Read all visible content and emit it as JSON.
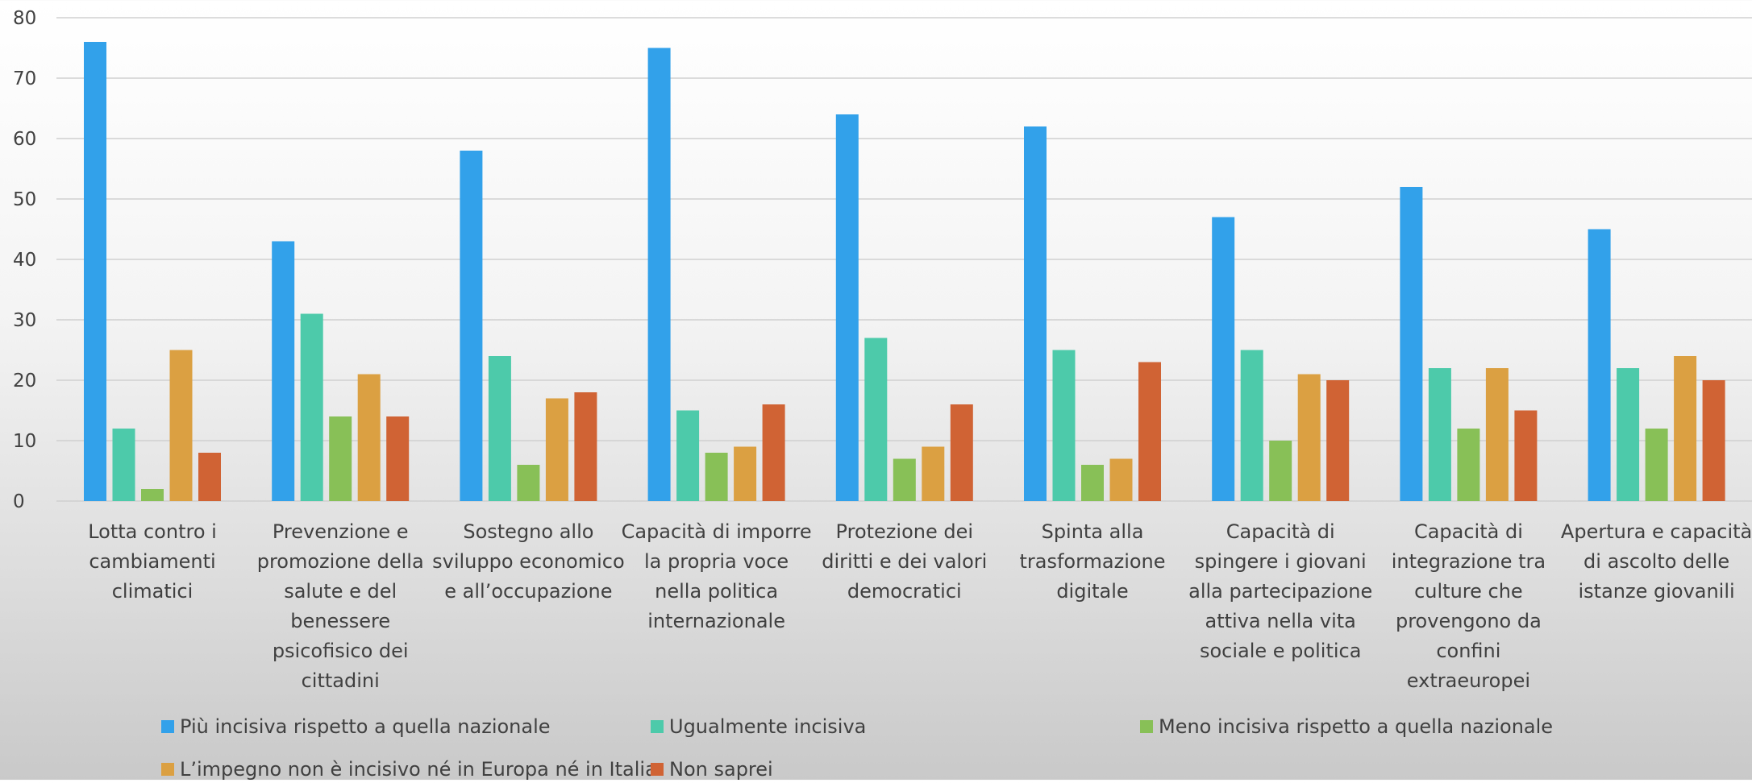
{
  "chart_data": {
    "type": "bar",
    "title": "",
    "xlabel": "",
    "ylabel": "",
    "ylim": [
      0,
      80
    ],
    "yticks": [
      0,
      10,
      20,
      30,
      40,
      50,
      60,
      70,
      80
    ],
    "grid": true,
    "legend_position": "bottom",
    "categories": [
      "Lotta contro i cambiamenti climatici",
      "Prevenzione e promozione della salute e del benessere psicofisico dei cittadini",
      "Sostegno allo sviluppo economico e all’occupazione",
      "Capacità di imporre la propria voce nella politica internazionale",
      "Protezione dei diritti e dei valori democratici",
      "Spinta alla trasformazione digitale",
      "Capacità di spingere i giovani alla partecipazione attiva nella vita sociale e politica",
      "Capacità di integrazione tra culture che provengono da confini extraeuropei",
      "Apertura e capacità di ascolto delle istanze giovanili"
    ],
    "category_lines": [
      [
        "Lotta contro i",
        "cambiamenti",
        "climatici"
      ],
      [
        "Prevenzione e",
        "promozione della",
        "salute e del",
        "benessere",
        "psicofisico dei",
        "cittadini"
      ],
      [
        "Sostegno allo",
        "sviluppo economico",
        "e all’occupazione"
      ],
      [
        "Capacità di imporre",
        "la propria voce",
        "nella politica",
        "internazionale"
      ],
      [
        "Protezione dei",
        "diritti e dei valori",
        "democratici"
      ],
      [
        "Spinta alla",
        "trasformazione",
        "digitale"
      ],
      [
        "Capacità di",
        "spingere i giovani",
        "alla partecipazione",
        "attiva nella vita",
        "sociale e politica"
      ],
      [
        "Capacità di",
        "integrazione tra",
        "culture che",
        "provengono da",
        "confini",
        "extraeuropei"
      ],
      [
        "Apertura e capacità",
        "di ascolto delle",
        "istanze giovanili"
      ]
    ],
    "series": [
      {
        "name": "Più incisiva rispetto a quella nazionale",
        "color": "#32A1EA",
        "values": [
          76,
          43,
          58,
          75,
          64,
          62,
          47,
          52,
          45
        ]
      },
      {
        "name": "Ugualmente incisiva",
        "color": "#4DCAAA",
        "values": [
          12,
          31,
          24,
          15,
          27,
          25,
          25,
          22,
          22
        ]
      },
      {
        "name": "Meno incisiva rispetto a quella nazionale",
        "color": "#88C057",
        "values": [
          2,
          14,
          6,
          8,
          7,
          6,
          10,
          12,
          12
        ]
      },
      {
        "name": "L’impegno non è incisivo né in Europa né in Italia",
        "color": "#DBA042",
        "values": [
          25,
          21,
          17,
          9,
          9,
          7,
          21,
          22,
          24
        ]
      },
      {
        "name": "Non saprei",
        "color": "#D06334",
        "values": [
          8,
          14,
          18,
          16,
          16,
          23,
          20,
          15,
          20
        ]
      }
    ]
  }
}
